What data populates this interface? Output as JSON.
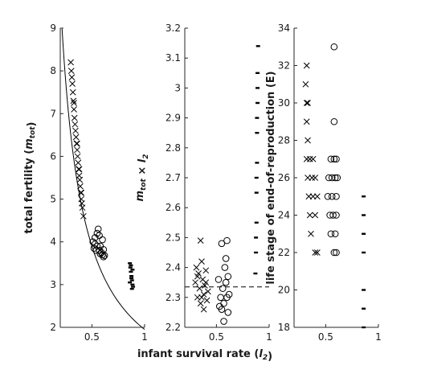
{
  "chart_data": [
    {
      "type": "scatter",
      "ylabel": "total fertility (m_tot)",
      "xlim": [
        0.2,
        1.0
      ],
      "ylim": [
        2,
        9
      ],
      "xticks": [
        "0.5",
        "1"
      ],
      "yticks": [
        "2",
        "3",
        "4",
        "5",
        "6",
        "7",
        "8",
        "9"
      ],
      "curve": {
        "formula": "y = 1.95 / x",
        "x_from": 0.217,
        "x_to": 1.0
      },
      "series": [
        {
          "marker": "x",
          "points": [
            [
              0.3,
              8.2
            ],
            [
              0.305,
              8.0
            ],
            [
              0.31,
              7.85
            ],
            [
              0.315,
              7.7
            ],
            [
              0.32,
              7.5
            ],
            [
              0.325,
              7.3
            ],
            [
              0.33,
              7.1
            ],
            [
              0.335,
              6.9
            ],
            [
              0.34,
              6.75
            ],
            [
              0.345,
              6.6
            ],
            [
              0.35,
              6.45
            ],
            [
              0.355,
              6.3
            ],
            [
              0.36,
              6.15
            ],
            [
              0.365,
              6.0
            ],
            [
              0.37,
              5.85
            ],
            [
              0.375,
              5.7
            ],
            [
              0.38,
              5.55
            ],
            [
              0.385,
              5.45
            ],
            [
              0.39,
              5.3
            ],
            [
              0.395,
              5.15
            ],
            [
              0.4,
              5.0
            ],
            [
              0.405,
              4.9
            ],
            [
              0.41,
              4.8
            ],
            [
              0.42,
              4.6
            ],
            [
              0.33,
              7.25
            ],
            [
              0.36,
              6.3
            ],
            [
              0.38,
              5.7
            ],
            [
              0.4,
              5.15
            ]
          ]
        },
        {
          "marker": "o",
          "points": [
            [
              0.51,
              4.0
            ],
            [
              0.52,
              3.85
            ],
            [
              0.53,
              3.95
            ],
            [
              0.54,
              3.8
            ],
            [
              0.55,
              4.2
            ],
            [
              0.56,
              4.3
            ],
            [
              0.57,
              4.15
            ],
            [
              0.58,
              3.9
            ],
            [
              0.59,
              3.75
            ],
            [
              0.6,
              3.7
            ],
            [
              0.61,
              3.65
            ],
            [
              0.62,
              3.68
            ],
            [
              0.55,
              3.9
            ],
            [
              0.57,
              3.8
            ],
            [
              0.6,
              4.05
            ],
            [
              0.58,
              3.72
            ],
            [
              0.53,
              4.1
            ],
            [
              0.61,
              3.82
            ]
          ]
        },
        {
          "marker": "dot",
          "points": [
            [
              0.86,
              3.5
            ],
            [
              0.865,
              3.4
            ],
            [
              0.87,
              3.3
            ],
            [
              0.875,
              3.2
            ],
            [
              0.88,
              3.1
            ],
            [
              0.885,
              3.0
            ],
            [
              0.89,
              2.95
            ],
            [
              0.87,
              3.45
            ],
            [
              0.875,
              3.15
            ],
            [
              0.88,
              2.9
            ],
            [
              0.885,
              3.35
            ],
            [
              0.86,
              3.05
            ]
          ]
        }
      ]
    },
    {
      "type": "scatter",
      "ylabel": "m_tot × l_2",
      "xlim": [
        0.2,
        1.0
      ],
      "ylim": [
        2.2,
        3.2
      ],
      "xticks": [
        "0.5",
        "1"
      ],
      "yticks": [
        "2.2",
        "2.3",
        "2.4",
        "2.5",
        "2.6",
        "2.7",
        "2.8",
        "2.9",
        "3",
        "3.1",
        "3.2"
      ],
      "hline": {
        "y": 2.335,
        "style": "dashed"
      },
      "series": [
        {
          "marker": "x",
          "points": [
            [
              0.3,
              2.35
            ],
            [
              0.31,
              2.4
            ],
            [
              0.32,
              2.3
            ],
            [
              0.33,
              2.38
            ],
            [
              0.34,
              2.33
            ],
            [
              0.35,
              2.28
            ],
            [
              0.36,
              2.42
            ],
            [
              0.37,
              2.36
            ],
            [
              0.38,
              2.31
            ],
            [
              0.39,
              2.34
            ],
            [
              0.4,
              2.39
            ],
            [
              0.41,
              2.29
            ],
            [
              0.42,
              2.32
            ],
            [
              0.35,
              2.49
            ],
            [
              0.38,
              2.26
            ],
            [
              0.32,
              2.37
            ],
            [
              0.36,
              2.3
            ],
            [
              0.4,
              2.35
            ]
          ]
        },
        {
          "marker": "o",
          "points": [
            [
              0.52,
              2.36
            ],
            [
              0.54,
              2.3
            ],
            [
              0.55,
              2.26
            ],
            [
              0.56,
              2.33
            ],
            [
              0.57,
              2.28
            ],
            [
              0.58,
              2.4
            ],
            [
              0.59,
              2.35
            ],
            [
              0.6,
              2.3
            ],
            [
              0.61,
              2.25
            ],
            [
              0.62,
              2.31
            ],
            [
              0.55,
              2.48
            ],
            [
              0.6,
              2.49
            ],
            [
              0.57,
              2.22
            ],
            [
              0.59,
              2.43
            ],
            [
              0.61,
              2.37
            ],
            [
              0.53,
              2.27
            ]
          ]
        },
        {
          "marker": "dot",
          "points": [
            [
              0.87,
              2.38
            ],
            [
              0.875,
              2.45
            ],
            [
              0.88,
              2.55
            ],
            [
              0.88,
              2.65
            ],
            [
              0.885,
              2.75
            ],
            [
              0.885,
              2.85
            ],
            [
              0.89,
              2.95
            ],
            [
              0.89,
              3.05
            ],
            [
              0.895,
              3.14
            ],
            [
              0.875,
              2.5
            ],
            [
              0.88,
              2.7
            ],
            [
              0.885,
              2.9
            ],
            [
              0.89,
              3.0
            ]
          ]
        }
      ]
    },
    {
      "type": "scatter",
      "ylabel": "life stage of end-of-reproduction (E)",
      "xlim": [
        0.2,
        1.0
      ],
      "ylim": [
        18,
        34
      ],
      "xticks": [
        "0.5",
        "1"
      ],
      "yticks": [
        "18",
        "20",
        "22",
        "24",
        "26",
        "28",
        "30",
        "32",
        "34"
      ],
      "series": [
        {
          "marker": "x",
          "points": [
            [
              0.32,
              32
            ],
            [
              0.31,
              31
            ],
            [
              0.32,
              30
            ],
            [
              0.33,
              30
            ],
            [
              0.32,
              29
            ],
            [
              0.33,
              28
            ],
            [
              0.32,
              27
            ],
            [
              0.35,
              27
            ],
            [
              0.38,
              27
            ],
            [
              0.33,
              26
            ],
            [
              0.37,
              26
            ],
            [
              0.4,
              26
            ],
            [
              0.34,
              25
            ],
            [
              0.38,
              25
            ],
            [
              0.42,
              25
            ],
            [
              0.35,
              24
            ],
            [
              0.4,
              24
            ],
            [
              0.36,
              23
            ],
            [
              0.4,
              22
            ],
            [
              0.42,
              22
            ]
          ]
        },
        {
          "marker": "o",
          "points": [
            [
              0.58,
              33
            ],
            [
              0.58,
              29
            ],
            [
              0.55,
              27
            ],
            [
              0.58,
              27
            ],
            [
              0.6,
              27
            ],
            [
              0.53,
              26
            ],
            [
              0.56,
              26
            ],
            [
              0.59,
              26
            ],
            [
              0.61,
              26
            ],
            [
              0.52,
              25
            ],
            [
              0.56,
              25
            ],
            [
              0.6,
              25
            ],
            [
              0.54,
              24
            ],
            [
              0.57,
              24
            ],
            [
              0.6,
              24
            ],
            [
              0.55,
              23
            ],
            [
              0.59,
              23
            ],
            [
              0.58,
              22
            ],
            [
              0.6,
              22
            ]
          ]
        },
        {
          "marker": "dot",
          "points": [
            [
              0.86,
              25
            ],
            [
              0.86,
              24
            ],
            [
              0.86,
              23
            ],
            [
              0.86,
              22
            ],
            [
              0.86,
              20
            ],
            [
              0.86,
              19
            ],
            [
              0.86,
              18
            ]
          ]
        }
      ]
    }
  ],
  "xlabel": "infant survival rate (l_2)"
}
